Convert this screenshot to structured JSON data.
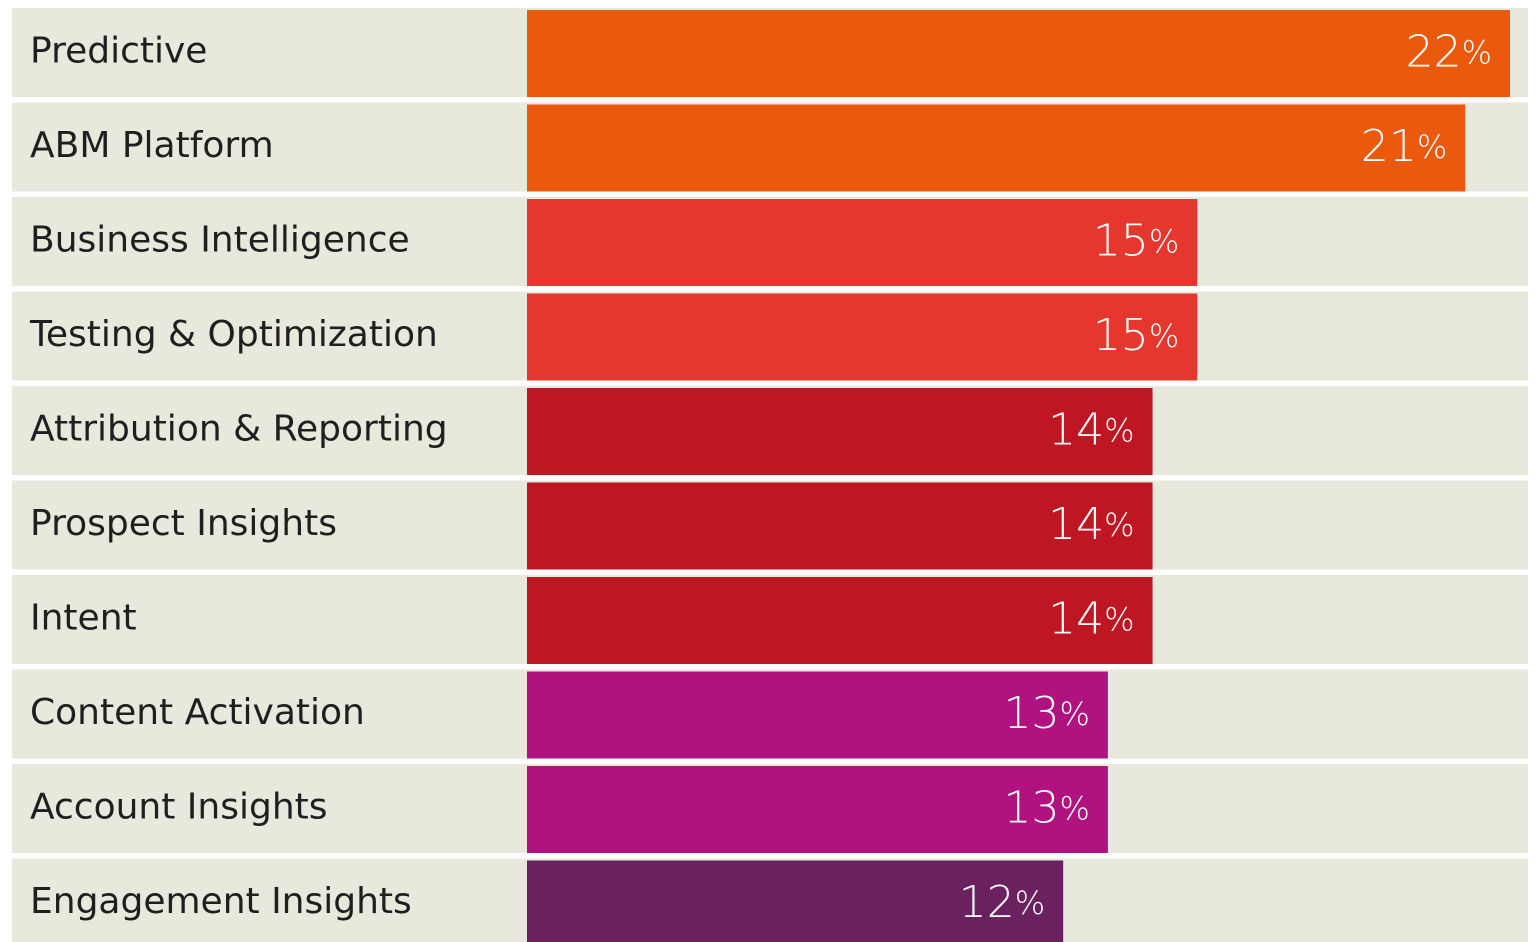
{
  "chart_data": {
    "type": "bar",
    "orientation": "horizontal",
    "categories": [
      "Predictive",
      "ABM Platform",
      "Business Intelligence",
      "Testing & Optimization",
      "Attribution & Reporting",
      "Prospect Insights",
      "Intent",
      "Content Activation",
      "Account Insights",
      "Engagement Insights"
    ],
    "values": [
      22,
      21,
      15,
      15,
      14,
      14,
      14,
      13,
      13,
      12
    ],
    "value_labels": [
      "22%",
      "21%",
      "15%",
      "15%",
      "14%",
      "14%",
      "14%",
      "13%",
      "13%",
      "12%"
    ],
    "colors": [
      "#eb5a0c",
      "#eb5a0c",
      "#e6372e",
      "#e6372e",
      "#be1622",
      "#be1622",
      "#be1622",
      "#b01380",
      "#b01380",
      "#6b2160"
    ],
    "xlim": [
      0,
      22
    ]
  }
}
